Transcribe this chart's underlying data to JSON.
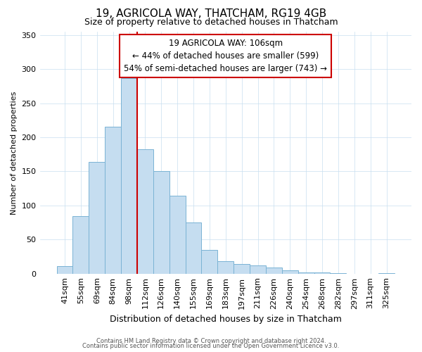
{
  "title": "19, AGRICOLA WAY, THATCHAM, RG19 4GB",
  "subtitle": "Size of property relative to detached houses in Thatcham",
  "xlabel": "Distribution of detached houses by size in Thatcham",
  "ylabel": "Number of detached properties",
  "bar_labels": [
    "41sqm",
    "55sqm",
    "69sqm",
    "84sqm",
    "98sqm",
    "112sqm",
    "126sqm",
    "140sqm",
    "155sqm",
    "169sqm",
    "183sqm",
    "197sqm",
    "211sqm",
    "226sqm",
    "240sqm",
    "254sqm",
    "268sqm",
    "282sqm",
    "297sqm",
    "311sqm",
    "325sqm"
  ],
  "bar_heights": [
    11,
    84,
    164,
    216,
    287,
    182,
    150,
    114,
    75,
    35,
    18,
    14,
    12,
    9,
    5,
    2,
    2,
    1,
    0,
    0,
    1
  ],
  "bar_color": "#c5ddf0",
  "bar_edge_color": "#7ab3d4",
  "vline_color": "#cc0000",
  "vline_x_index": 4.5,
  "ylim": [
    0,
    355
  ],
  "yticks": [
    0,
    50,
    100,
    150,
    200,
    250,
    300,
    350
  ],
  "annotation_title": "19 AGRICOLA WAY: 106sqm",
  "annotation_line1": "← 44% of detached houses are smaller (599)",
  "annotation_line2": "54% of semi-detached houses are larger (743) →",
  "footer1": "Contains HM Land Registry data © Crown copyright and database right 2024.",
  "footer2": "Contains public sector information licensed under the Open Government Licence v3.0.",
  "background_color": "#ffffff",
  "title_fontsize": 11,
  "subtitle_fontsize": 9,
  "ylabel_fontsize": 8,
  "xlabel_fontsize": 9,
  "tick_fontsize": 8,
  "annot_fontsize": 8.5,
  "footer_fontsize": 6
}
